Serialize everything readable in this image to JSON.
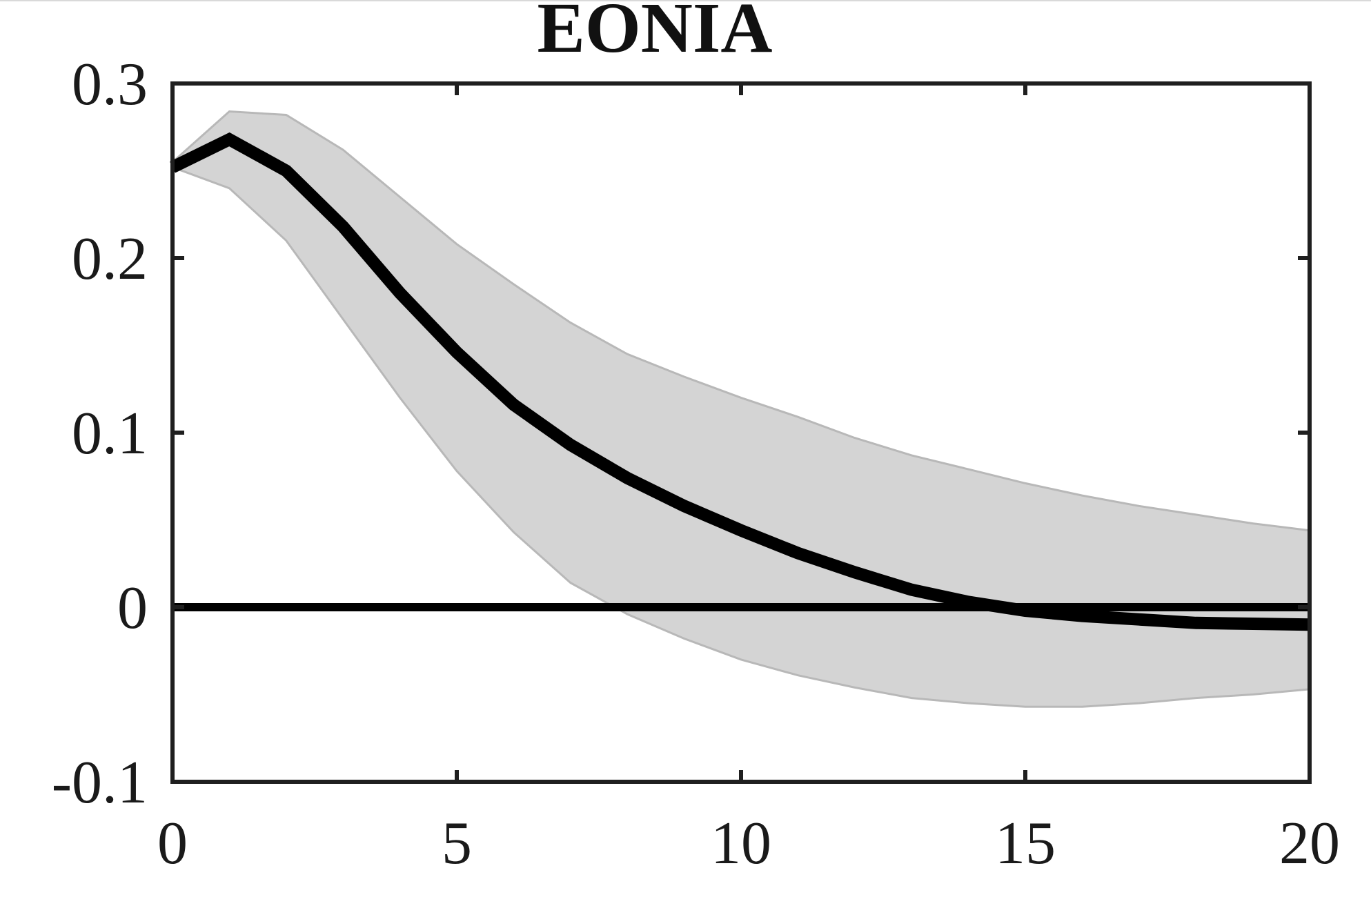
{
  "chart_data": {
    "type": "line",
    "title": "EONIA",
    "xlabel": "",
    "ylabel": "",
    "xlim": [
      0,
      20
    ],
    "ylim": [
      -0.1,
      0.3
    ],
    "xticks": [
      0,
      5,
      10,
      15,
      20
    ],
    "xtick_labels": [
      "0",
      "5",
      "10",
      "15",
      "20"
    ],
    "yticks": [
      -0.1,
      0,
      0.1,
      0.2,
      0.3
    ],
    "ytick_labels": [
      "-0.1",
      "0",
      "0.1",
      "0.2",
      "0.3"
    ],
    "grid": false,
    "zero_line": true,
    "x": [
      0,
      1,
      2,
      3,
      4,
      5,
      6,
      7,
      8,
      9,
      10,
      11,
      12,
      13,
      14,
      15,
      16,
      17,
      18,
      19,
      20
    ],
    "series": [
      {
        "role": "median",
        "values": [
          0.252,
          0.268,
          0.25,
          0.218,
          0.18,
          0.146,
          0.116,
          0.093,
          0.074,
          0.058,
          0.044,
          0.031,
          0.02,
          0.01,
          0.003,
          -0.002,
          -0.005,
          -0.007,
          -0.009,
          -0.0095,
          -0.01
        ]
      }
    ],
    "band": {
      "lower": [
        0.252,
        0.24,
        0.21,
        0.165,
        0.12,
        0.078,
        0.043,
        0.014,
        -0.004,
        -0.018,
        -0.03,
        -0.039,
        -0.046,
        -0.052,
        -0.055,
        -0.057,
        -0.057,
        -0.055,
        -0.052,
        -0.05,
        -0.047
      ],
      "upper": [
        0.255,
        0.284,
        0.282,
        0.262,
        0.235,
        0.208,
        0.185,
        0.163,
        0.145,
        0.132,
        0.12,
        0.109,
        0.097,
        0.087,
        0.079,
        0.071,
        0.064,
        0.058,
        0.053,
        0.048,
        0.044
      ]
    },
    "colors": {
      "median": "#000000",
      "band_fill": "#d4d4d4",
      "band_edge": "#b8b8b8",
      "axes": "#1f1f1f",
      "zero_line": "#000000"
    }
  }
}
